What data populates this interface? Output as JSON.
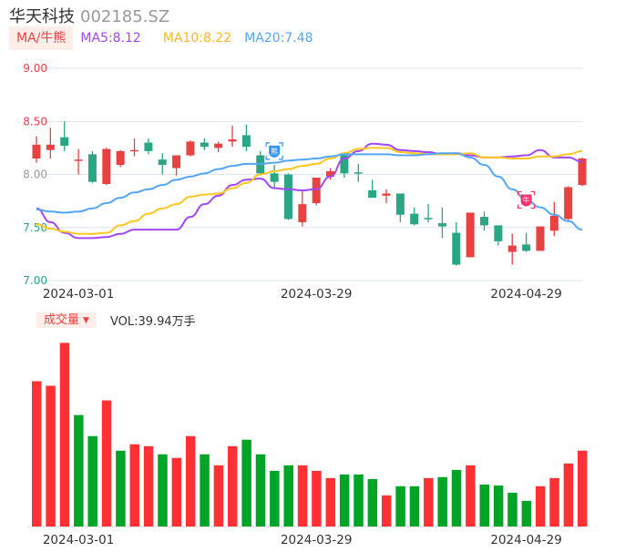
{
  "header": {
    "name": "华天科技",
    "code": "002185.SZ"
  },
  "ma_legend": {
    "tag": "MA/牛熊",
    "ma5": "MA5:8.12",
    "ma10": "MA10:8.22",
    "ma20": "MA20:7.48"
  },
  "volume_legend": {
    "tag": "成交量",
    "caret": "▼",
    "value": "VOL:39.94万手"
  },
  "markers": [
    {
      "label": "熊",
      "index": 17,
      "price": 8.22,
      "color": "#2f93f5"
    },
    {
      "label": "牛",
      "index": 35,
      "price": 7.76,
      "color": "#f5336e"
    }
  ],
  "colors": {
    "up": "#e84142",
    "down": "#2ba684",
    "vol_up": "#ff3034",
    "vol_down": "#00a527",
    "ma5": "#a347f5",
    "ma10": "#ffc61f",
    "ma20": "#54a6f5",
    "grid": "#dde3ef"
  },
  "chart_data": [
    {
      "type": "candlestick",
      "title": "华天科技 002185.SZ",
      "ylim": [
        7.0,
        9.0
      ],
      "yticks": [
        {
          "label": "9.00",
          "value": 9.0,
          "color": "#f04040"
        },
        {
          "label": "8.50",
          "value": 8.5,
          "color": "#f04040"
        },
        {
          "label": "8.00",
          "value": 8.0,
          "color": "#999999"
        },
        {
          "label": "7.50",
          "value": 7.5,
          "color": "#2ba684"
        },
        {
          "label": "7.00",
          "value": 7.0,
          "color": "#2ba684"
        }
      ],
      "xticks": [
        {
          "label": "2024-03-01",
          "index": 3
        },
        {
          "label": "2024-03-29",
          "index": 20
        },
        {
          "label": "2024-04-29",
          "index": 35
        }
      ],
      "grid": true,
      "ohlc": [
        [
          8.15,
          8.36,
          8.11,
          8.28
        ],
        [
          8.23,
          8.44,
          8.15,
          8.28
        ],
        [
          8.35,
          8.5,
          8.22,
          8.27
        ],
        [
          8.13,
          8.24,
          8.0,
          8.14
        ],
        [
          8.19,
          8.22,
          7.92,
          7.93
        ],
        [
          7.91,
          8.25,
          7.9,
          8.24
        ],
        [
          8.09,
          8.23,
          8.07,
          8.22
        ],
        [
          8.22,
          8.34,
          8.17,
          8.23
        ],
        [
          8.3,
          8.34,
          8.19,
          8.22
        ],
        [
          8.14,
          8.2,
          8.0,
          8.09
        ],
        [
          8.06,
          8.18,
          7.99,
          8.18
        ],
        [
          8.18,
          8.32,
          8.17,
          8.31
        ],
        [
          8.3,
          8.34,
          8.23,
          8.26
        ],
        [
          8.25,
          8.31,
          8.21,
          8.29
        ],
        [
          8.31,
          8.46,
          8.26,
          8.33
        ],
        [
          8.37,
          8.47,
          8.22,
          8.26
        ],
        [
          8.18,
          8.22,
          7.99,
          8.01
        ],
        [
          8.01,
          8.09,
          7.87,
          7.93
        ],
        [
          8.0,
          8.01,
          7.57,
          7.58
        ],
        [
          7.55,
          7.86,
          7.51,
          7.72
        ],
        [
          7.73,
          7.97,
          7.71,
          7.97
        ],
        [
          7.98,
          8.06,
          7.95,
          8.03
        ],
        [
          8.18,
          8.2,
          7.97,
          8.01
        ],
        [
          8.02,
          8.1,
          7.93,
          8.01
        ],
        [
          7.85,
          7.95,
          7.78,
          7.78
        ],
        [
          7.8,
          7.86,
          7.73,
          7.82
        ],
        [
          7.82,
          7.82,
          7.55,
          7.62
        ],
        [
          7.63,
          7.69,
          7.52,
          7.53
        ],
        [
          7.59,
          7.72,
          7.55,
          7.58
        ],
        [
          7.54,
          7.69,
          7.4,
          7.51
        ],
        [
          7.45,
          7.55,
          7.14,
          7.15
        ],
        [
          7.22,
          7.64,
          7.22,
          7.64
        ],
        [
          7.6,
          7.65,
          7.47,
          7.52
        ],
        [
          7.52,
          7.52,
          7.33,
          7.37
        ],
        [
          7.27,
          7.44,
          7.15,
          7.33
        ],
        [
          7.34,
          7.45,
          7.27,
          7.28
        ],
        [
          7.28,
          7.51,
          7.28,
          7.51
        ],
        [
          7.47,
          7.74,
          7.42,
          7.61
        ],
        [
          7.58,
          7.89,
          7.56,
          7.88
        ],
        [
          7.9,
          8.16,
          7.89,
          8.15
        ]
      ],
      "series": [
        {
          "name": "MA5",
          "values": [
            7.68,
            7.55,
            7.45,
            7.4,
            7.4,
            7.41,
            7.44,
            7.48,
            7.48,
            7.48,
            7.48,
            7.6,
            7.72,
            7.8,
            7.9,
            7.95,
            7.96,
            7.87,
            7.86,
            7.85,
            7.86,
            7.98,
            8.15,
            8.22,
            8.29,
            8.28,
            8.23,
            8.22,
            8.21,
            8.19,
            8.2,
            8.18,
            8.16,
            8.16,
            8.17,
            8.18,
            8.23,
            8.16,
            8.16,
            8.12
          ]
        },
        {
          "name": "MA10",
          "values": [
            7.53,
            7.49,
            7.46,
            7.44,
            7.44,
            7.45,
            7.52,
            7.56,
            7.63,
            7.68,
            7.72,
            7.79,
            7.81,
            7.82,
            7.87,
            7.92,
            8.0,
            8.03,
            8.05,
            8.08,
            8.1,
            8.15,
            8.2,
            8.24,
            8.25,
            8.25,
            8.21,
            8.2,
            8.19,
            8.19,
            8.19,
            8.2,
            8.16,
            8.16,
            8.15,
            8.15,
            8.17,
            8.17,
            8.19,
            8.22
          ]
        },
        {
          "name": "MA20",
          "values": [
            7.67,
            7.65,
            7.64,
            7.65,
            7.68,
            7.73,
            7.78,
            7.83,
            7.86,
            7.9,
            7.95,
            7.98,
            8.01,
            8.05,
            8.08,
            8.1,
            8.1,
            8.11,
            8.13,
            8.14,
            8.15,
            8.17,
            8.19,
            8.19,
            8.19,
            8.19,
            8.18,
            8.18,
            8.19,
            8.2,
            8.2,
            8.16,
            8.09,
            7.98,
            7.86,
            7.76,
            7.69,
            7.62,
            7.56,
            7.48
          ]
        }
      ]
    },
    {
      "type": "bar",
      "title": "成交量",
      "ylabel": "万手",
      "ylim": [
        0,
        106
      ],
      "xticks": [
        {
          "label": "2024-03-01",
          "index": 3
        },
        {
          "label": "2024-03-29",
          "index": 20
        },
        {
          "label": "2024-04-29",
          "index": 35
        }
      ],
      "values": [
        76.5,
        74.1,
        96.7,
        58.7,
        47.6,
        66.4,
        39.9,
        43.3,
        42.3,
        38.0,
        36.1,
        47.6,
        38.0,
        32.2,
        42.3,
        45.7,
        38.0,
        29.3,
        32.2,
        32.2,
        29.3,
        25.5,
        27.4,
        27.4,
        25.0,
        16.4,
        21.2,
        21.2,
        25.5,
        26.0,
        29.8,
        32.2,
        22.1,
        21.6,
        17.8,
        13.5,
        21.2,
        25.5,
        33.2,
        39.94
      ],
      "directions": [
        "up",
        "up",
        "up",
        "down",
        "down",
        "up",
        "down",
        "up",
        "up",
        "down",
        "up",
        "up",
        "down",
        "up",
        "up",
        "down",
        "down",
        "down",
        "down",
        "up",
        "up",
        "up",
        "down",
        "down",
        "down",
        "up",
        "down",
        "down",
        "up",
        "down",
        "down",
        "up",
        "down",
        "down",
        "down",
        "down",
        "up",
        "up",
        "up",
        "up"
      ]
    }
  ]
}
